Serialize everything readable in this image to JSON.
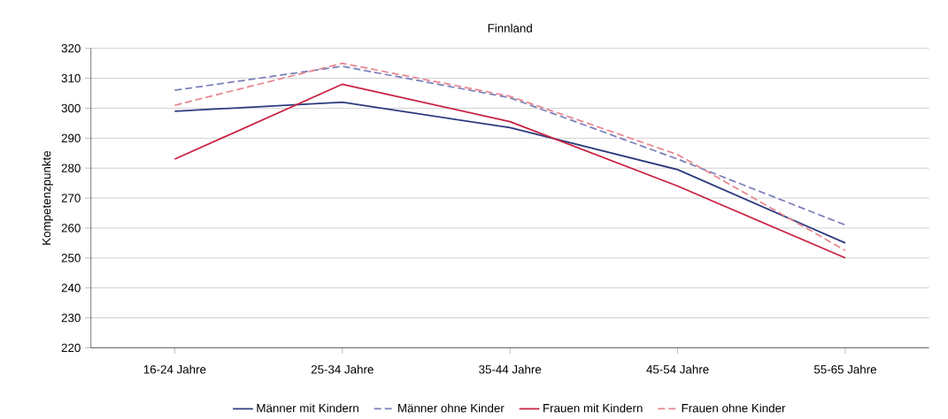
{
  "chart_data": {
    "type": "line",
    "title": "Finnland",
    "ylabel": "Kompetenzpunkte",
    "categories": [
      "16-24 Jahre",
      "25-34 Jahre",
      "35-44 Jahre",
      "45-54 Jahre",
      "55-65 Jahre"
    ],
    "ylim": [
      220,
      320
    ],
    "yticks": [
      220,
      230,
      240,
      250,
      260,
      270,
      280,
      290,
      300,
      310,
      320
    ],
    "grid": "y",
    "legend": "bottom",
    "marker": "none",
    "series": [
      {
        "name": "Männer mit Kindern",
        "color": "#2b3a7e",
        "line_style": "solid",
        "values": [
          299,
          302,
          293.5,
          279.5,
          255
        ]
      },
      {
        "name": "Männer ohne Kinder",
        "color": "#7a80b8",
        "line_style": "dashed",
        "values": [
          306,
          314,
          303.5,
          283,
          261
        ]
      },
      {
        "name": "Frauen mit Kindern",
        "color": "#c8203f",
        "line_style": "solid",
        "values": [
          283,
          308,
          295.5,
          274,
          250
        ]
      },
      {
        "name": "Frauen ohne Kinder",
        "color": "#e8868f",
        "line_style": "dashed",
        "values": [
          301,
          315,
          304,
          284.5,
          252.5
        ]
      }
    ]
  }
}
